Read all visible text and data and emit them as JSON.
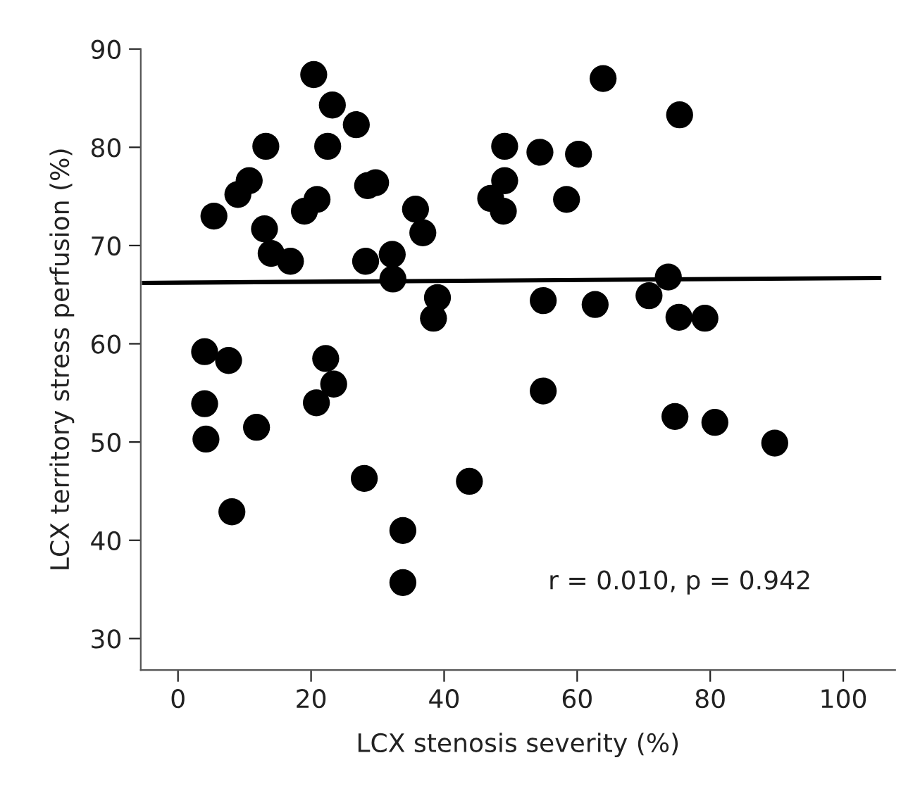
{
  "chart_data": {
    "type": "scatter",
    "xlabel": "LCX stenosis severity (%)",
    "ylabel": "LCX territory stress perfusion (%)",
    "xlim": [
      -5.6,
      107.8
    ],
    "ylim": [
      26.8,
      90
    ],
    "xticks": [
      0,
      20,
      40,
      60,
      80,
      100
    ],
    "yticks": [
      30,
      40,
      50,
      60,
      70,
      80,
      90
    ],
    "grid": false,
    "legend": false,
    "marker": "circle",
    "annotations": [
      "r = 0.010, p = 0.942"
    ],
    "series": [
      {
        "color": "#000000",
        "x": [
          5.4,
          9.0,
          10.7,
          13.2,
          13.0,
          14.0,
          16.9,
          20.4,
          23.2,
          22.5,
          26.8,
          19.0,
          20.9,
          28.5,
          29.7,
          28.2,
          32.2,
          32.3,
          35.7,
          36.8,
          39.0,
          38.4,
          49.1,
          49.1,
          47.0,
          48.9,
          4.0,
          7.6,
          22.2,
          4.0,
          4.2,
          11.8,
          8.1,
          23.4,
          20.8,
          28.0,
          33.8,
          43.8,
          33.8,
          63.9,
          75.4,
          54.4,
          60.2,
          58.4,
          54.9,
          62.7,
          70.8,
          73.7,
          75.3,
          79.2,
          54.9,
          74.7,
          80.7,
          89.7
        ],
        "values": [
          73.0,
          75.2,
          76.6,
          80.1,
          71.7,
          69.2,
          68.4,
          87.4,
          84.3,
          80.1,
          82.3,
          73.5,
          74.7,
          76.1,
          76.4,
          68.4,
          69.1,
          66.6,
          73.7,
          71.3,
          64.7,
          62.6,
          80.1,
          76.6,
          74.8,
          73.5,
          59.2,
          58.3,
          58.5,
          53.9,
          50.3,
          51.5,
          42.9,
          55.9,
          54.0,
          46.3,
          41.0,
          46.0,
          35.7,
          87.0,
          83.3,
          79.5,
          79.3,
          74.7,
          64.4,
          64.0,
          64.9,
          66.8,
          62.7,
          62.6,
          55.2,
          52.6,
          52.0,
          49.9
        ]
      },
      {
        "type": "line",
        "color": "#000000",
        "marker": "none",
        "x": [
          -5.1,
          105.4
        ],
        "values": [
          66.2,
          66.7
        ]
      }
    ]
  }
}
